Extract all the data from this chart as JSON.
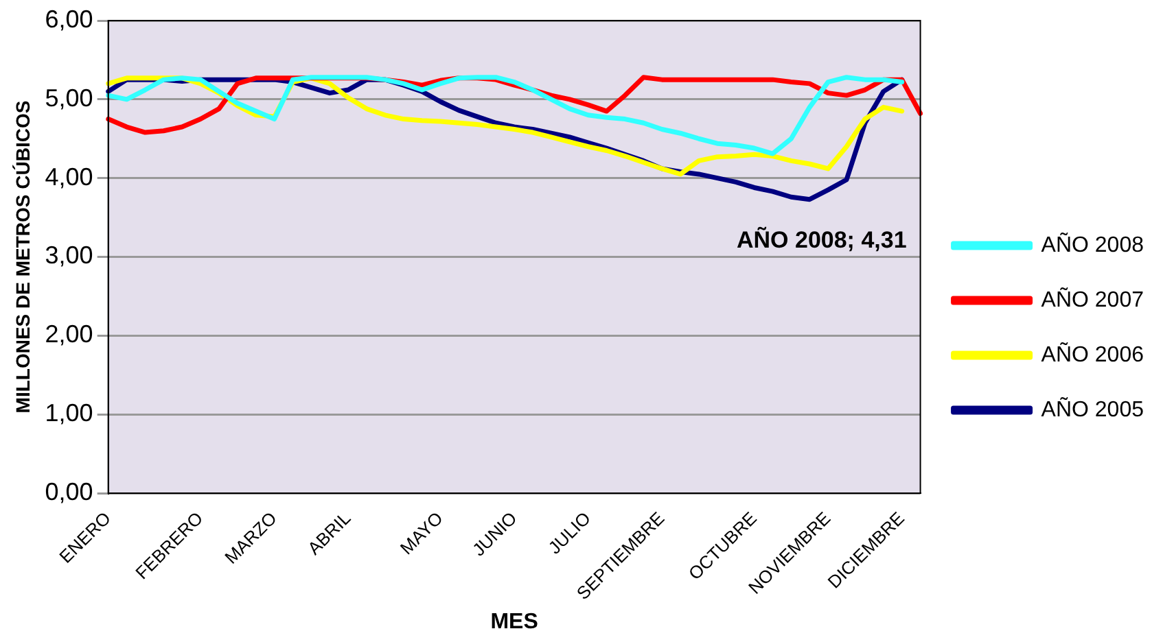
{
  "chart_data": {
    "type": "line",
    "xlabel": "MES",
    "ylabel": "MILLONES DE METROS CÚBICOS",
    "categories": [
      "ENERO",
      null,
      null,
      null,
      null,
      "FEBRERO",
      null,
      null,
      null,
      "MARZO",
      null,
      null,
      null,
      "ABRIL",
      null,
      null,
      null,
      null,
      "MAYO",
      null,
      null,
      null,
      "JUNIO",
      null,
      null,
      null,
      "JULIO",
      null,
      null,
      null,
      "SEPTIEMBRE",
      null,
      null,
      null,
      null,
      "OCTUBRE",
      null,
      null,
      null,
      "NOVIEMBRE",
      null,
      null,
      null,
      "DICIEMBRE",
      null
    ],
    "series": [
      {
        "name": "AÑO 2008",
        "color": "#33ffff",
        "values": [
          5.05,
          5.0,
          5.12,
          5.25,
          5.27,
          5.25,
          5.1,
          4.95,
          4.85,
          4.75,
          5.25,
          5.28,
          5.28,
          5.28,
          5.28,
          5.25,
          5.2,
          5.12,
          5.2,
          5.27,
          5.28,
          5.28,
          5.22,
          5.12,
          5.0,
          4.88,
          4.8,
          4.77,
          4.75,
          4.7,
          4.62,
          4.57,
          4.5,
          4.44,
          4.42,
          4.38,
          4.31,
          4.5,
          4.9,
          5.22,
          5.28,
          5.25,
          5.25,
          5.22,
          null
        ]
      },
      {
        "name": "AÑO 2007",
        "color": "#ff0000",
        "values": [
          4.75,
          4.65,
          4.58,
          4.6,
          4.65,
          4.75,
          4.88,
          5.2,
          5.27,
          5.27,
          5.27,
          5.27,
          5.27,
          5.27,
          5.27,
          5.25,
          5.22,
          5.18,
          5.24,
          5.27,
          5.27,
          5.25,
          5.18,
          5.12,
          5.05,
          5.0,
          4.93,
          4.85,
          5.05,
          5.28,
          5.25,
          5.25,
          5.25,
          5.25,
          5.25,
          5.25,
          5.25,
          5.22,
          5.2,
          5.08,
          5.05,
          5.12,
          5.25,
          5.25,
          4.82
        ]
      },
      {
        "name": "AÑO 2006",
        "color": "#ffff00",
        "values": [
          5.2,
          5.27,
          5.27,
          5.27,
          5.27,
          5.2,
          5.08,
          4.92,
          4.8,
          4.78,
          5.22,
          5.27,
          5.2,
          5.02,
          4.88,
          4.8,
          4.75,
          4.73,
          4.72,
          4.7,
          4.68,
          4.65,
          4.62,
          4.58,
          4.52,
          4.46,
          4.4,
          4.35,
          4.28,
          4.2,
          4.12,
          4.05,
          4.22,
          4.27,
          4.28,
          4.3,
          4.28,
          4.22,
          4.18,
          4.12,
          4.4,
          4.75,
          4.9,
          4.85,
          null
        ]
      },
      {
        "name": "AÑO 2005",
        "color": "#000080",
        "values": [
          5.1,
          5.25,
          5.25,
          5.25,
          5.23,
          5.25,
          5.25,
          5.25,
          5.25,
          5.25,
          5.22,
          5.15,
          5.08,
          5.12,
          5.25,
          5.25,
          5.18,
          5.1,
          4.97,
          4.86,
          4.78,
          4.7,
          4.65,
          4.62,
          4.57,
          4.52,
          4.45,
          4.38,
          4.3,
          4.22,
          4.12,
          4.08,
          4.05,
          4.0,
          3.95,
          3.88,
          3.83,
          3.76,
          3.73,
          3.85,
          3.98,
          4.7,
          5.1,
          5.25,
          null
        ]
      }
    ],
    "ylim": [
      0,
      6
    ],
    "yticks": [
      {
        "value": 0,
        "label": "0,00"
      },
      {
        "value": 1,
        "label": "1,00"
      },
      {
        "value": 2,
        "label": "2,00"
      },
      {
        "value": 3,
        "label": "3,00"
      },
      {
        "value": 4,
        "label": "4,00"
      },
      {
        "value": 5,
        "label": "5,00"
      },
      {
        "value": 6,
        "label": "6,00"
      }
    ],
    "grid": "y",
    "legend": "right",
    "marker": "none",
    "line_style": "solid",
    "annotations": [
      "AÑO 2008; 4,31"
    ]
  }
}
